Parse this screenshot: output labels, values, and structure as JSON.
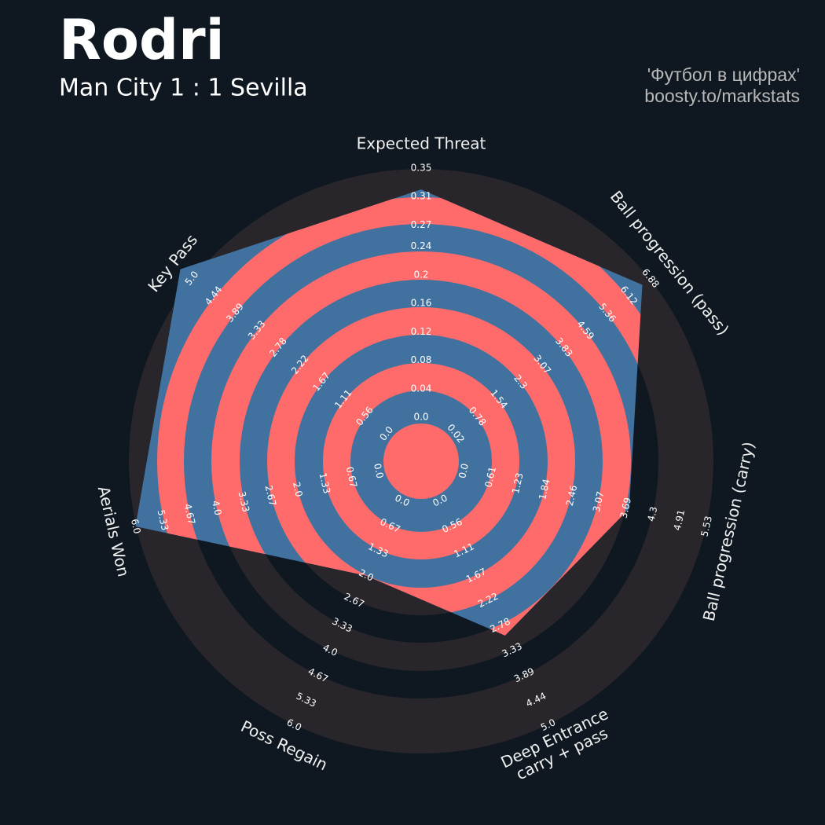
{
  "chart_data": {
    "type": "radar",
    "title": "Rodri",
    "subtitle": "Man City 1 : 1 Sevilla",
    "credits": [
      "'Футбол в цифрах'",
      "boosty.to/markstats"
    ],
    "axes": [
      {
        "name": "Expected Threat",
        "lim": [
          0,
          0.35
        ],
        "ticks": [
          {
            "value": 0,
            "label": "0.0"
          },
          0.04,
          0.08,
          0.12,
          0.16,
          0.2,
          0.24,
          0.27,
          0.31,
          0.35
        ]
      },
      {
        "name": "Ball progression (pass)",
        "lim": [
          0.02,
          6.88
        ],
        "ticks": [
          0.02,
          0.78,
          1.54,
          2.3,
          3.07,
          3.83,
          4.59,
          5.36,
          6.12,
          6.88
        ]
      },
      {
        "name": "Ball progression (carry)",
        "lim": [
          0,
          5.53
        ],
        "ticks": [
          {
            "value": 0,
            "label": "0.0"
          },
          0.61,
          1.23,
          1.84,
          2.46,
          3.07,
          3.69,
          4.3,
          4.91,
          5.53
        ]
      },
      {
        "name": "Deep Entrance\ncarry + pass",
        "lim": [
          0,
          5
        ],
        "ticks": [
          {
            "value": 0,
            "label": "0.0"
          },
          0.56,
          1.11,
          1.67,
          2.22,
          2.78,
          3.33,
          3.89,
          4.44,
          {
            "value": 5,
            "label": "5.0"
          }
        ]
      },
      {
        "name": "Poss Regain",
        "lim": [
          0,
          6
        ],
        "ticks": [
          {
            "value": 0,
            "label": "0.0"
          },
          0.67,
          1.33,
          {
            "value": 2,
            "label": "2.0"
          },
          2.67,
          3.33,
          {
            "value": 4,
            "label": "4.0"
          },
          4.67,
          5.33,
          {
            "value": 6,
            "label": "6.0"
          }
        ]
      },
      {
        "name": "Aerials Won",
        "lim": [
          0,
          6
        ],
        "ticks": [
          {
            "value": 0,
            "label": "0.0"
          },
          0.67,
          1.33,
          {
            "value": 2,
            "label": "2.0"
          },
          2.67,
          3.33,
          {
            "value": 4,
            "label": "4.0"
          },
          4.67,
          5.33,
          {
            "value": 6,
            "label": "6.0"
          }
        ]
      },
      {
        "name": "Key Pass",
        "lim": [
          0,
          5
        ],
        "ticks": [
          {
            "value": 0,
            "label": "0.0"
          },
          0.56,
          1.11,
          1.67,
          2.22,
          2.78,
          3.33,
          3.89,
          4.44,
          {
            "value": 5,
            "label": "5.0"
          }
        ]
      }
    ],
    "series": [
      {
        "color": "#41729f",
        "values": [
          0.32,
          6.6,
          3.76,
          3,
          2,
          6,
          5.3
        ]
      }
    ],
    "ring_color": "#ff6b6b",
    "band_color": "#28252b"
  }
}
